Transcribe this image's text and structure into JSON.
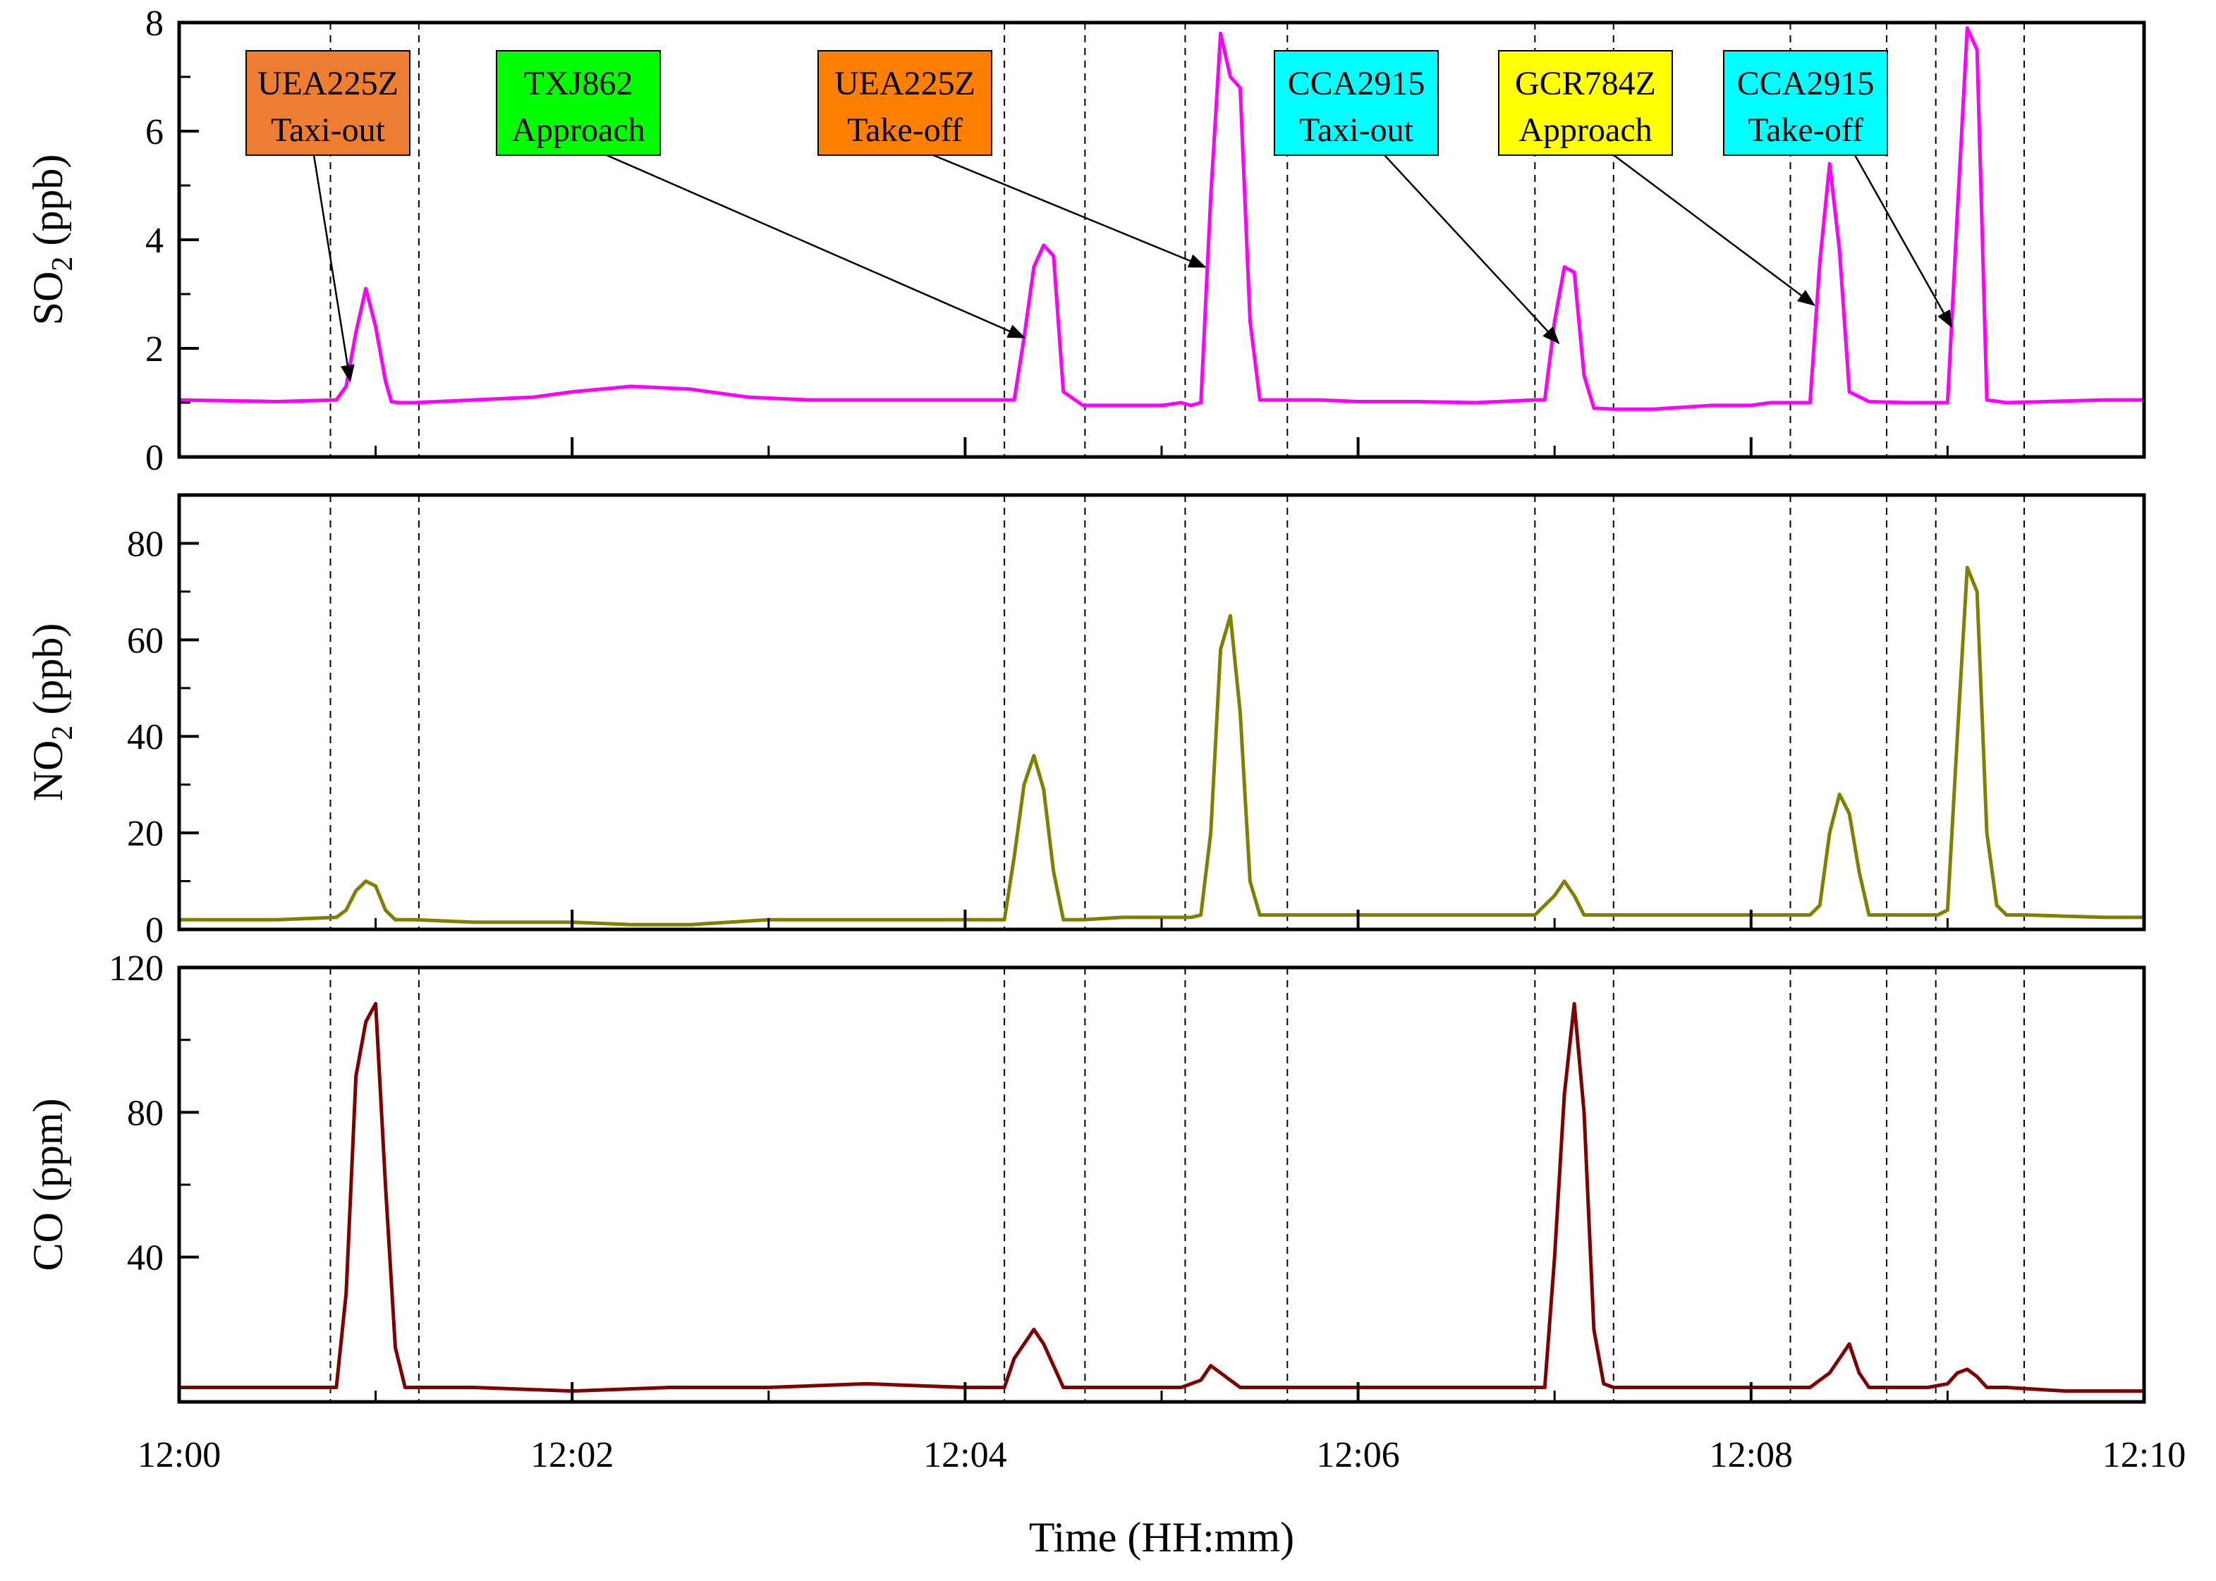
{
  "figure": {
    "xlabel": "Time (HH:mm)",
    "x_tick_labels": [
      "12:00",
      "12:02",
      "12:04",
      "12:06",
      "12:08",
      "12:10"
    ],
    "x_range_minutes": [
      0,
      10
    ]
  },
  "chart_data": [
    {
      "type": "line",
      "panel": "SO2",
      "ylabel_main": "SO",
      "ylabel_sub": "2",
      "ylabel_rest": " (ppb)",
      "color": "#ff00ff",
      "ylim": [
        0,
        8
      ],
      "yticks": [
        0,
        2,
        4,
        6,
        8
      ],
      "ytick_labels": [
        "0",
        "2",
        "4",
        "6",
        "8"
      ],
      "x": [
        0,
        0.5,
        0.8,
        0.85,
        0.9,
        0.95,
        1.0,
        1.05,
        1.08,
        1.12,
        1.2,
        1.5,
        1.8,
        2.0,
        2.3,
        2.6,
        2.9,
        3.2,
        3.5,
        3.8,
        4.0,
        4.15,
        4.25,
        4.3,
        4.35,
        4.4,
        4.45,
        4.5,
        4.6,
        4.8,
        5.0,
        5.1,
        5.15,
        5.2,
        5.25,
        5.3,
        5.35,
        5.4,
        5.45,
        5.5,
        5.55,
        5.8,
        6.0,
        6.3,
        6.6,
        6.9,
        6.95,
        7.0,
        7.05,
        7.1,
        7.15,
        7.2,
        7.3,
        7.5,
        7.8,
        8.0,
        8.1,
        8.2,
        8.3,
        8.35,
        8.4,
        8.45,
        8.5,
        8.6,
        8.8,
        8.9,
        8.95,
        9.0,
        9.05,
        9.1,
        9.15,
        9.2,
        9.3,
        9.5,
        9.8,
        10.0
      ],
      "values": [
        1.05,
        1.02,
        1.05,
        1.3,
        2.3,
        3.1,
        2.4,
        1.4,
        1.02,
        1.0,
        1.0,
        1.05,
        1.1,
        1.2,
        1.3,
        1.25,
        1.1,
        1.05,
        1.05,
        1.05,
        1.05,
        1.05,
        1.05,
        2.2,
        3.5,
        3.9,
        3.7,
        1.2,
        0.95,
        0.95,
        0.95,
        1.0,
        0.95,
        1.0,
        4.8,
        7.8,
        7.0,
        6.8,
        2.5,
        1.05,
        1.05,
        1.05,
        1.02,
        1.02,
        1.0,
        1.05,
        1.05,
        2.5,
        3.5,
        3.4,
        1.5,
        0.9,
        0.88,
        0.88,
        0.95,
        0.95,
        1.0,
        1.0,
        1.0,
        3.6,
        5.4,
        3.8,
        1.2,
        1.02,
        1.0,
        1.0,
        1.0,
        1.0,
        4.5,
        7.9,
        7.5,
        1.05,
        1.0,
        1.02,
        1.05,
        1.05
      ]
    },
    {
      "type": "line",
      "panel": "NO2",
      "ylabel_main": "NO",
      "ylabel_sub": "2",
      "ylabel_rest": " (ppb)",
      "color": "#808000",
      "ylim": [
        0,
        90
      ],
      "yticks": [
        0,
        20,
        40,
        60,
        80
      ],
      "ytick_labels": [
        "0",
        "20",
        "40",
        "60",
        "80"
      ],
      "x": [
        0,
        0.5,
        0.8,
        0.85,
        0.9,
        0.95,
        1.0,
        1.05,
        1.1,
        1.15,
        1.2,
        1.5,
        2.0,
        2.3,
        2.6,
        3.0,
        3.5,
        4.0,
        4.15,
        4.2,
        4.25,
        4.3,
        4.35,
        4.4,
        4.45,
        4.5,
        4.6,
        4.8,
        5.0,
        5.1,
        5.15,
        5.2,
        5.25,
        5.3,
        5.35,
        5.4,
        5.45,
        5.5,
        5.55,
        5.8,
        6.0,
        6.5,
        6.9,
        7.0,
        7.05,
        7.1,
        7.15,
        7.2,
        7.5,
        8.0,
        8.2,
        8.3,
        8.35,
        8.4,
        8.45,
        8.5,
        8.55,
        8.6,
        8.7,
        8.9,
        8.95,
        9.0,
        9.05,
        9.1,
        9.15,
        9.2,
        9.25,
        9.3,
        9.4,
        9.8,
        10.0
      ],
      "values": [
        2,
        2,
        2.5,
        4,
        8,
        10,
        9,
        4,
        2,
        2,
        2,
        1.5,
        1.5,
        1,
        1,
        2,
        2,
        2,
        2,
        2,
        15,
        30,
        36,
        29,
        12,
        2,
        2,
        2.5,
        2.5,
        2.5,
        2.5,
        3,
        20,
        58,
        65,
        45,
        10,
        3,
        3,
        3,
        3,
        3,
        3,
        7,
        10,
        7,
        3,
        3,
        3,
        3,
        3,
        3,
        5,
        20,
        28,
        24,
        12,
        3,
        3,
        3,
        3,
        4,
        40,
        75,
        70,
        20,
        5,
        3,
        3,
        2.5,
        2.5
      ]
    },
    {
      "type": "line",
      "panel": "CO",
      "ylabel_main": "CO",
      "ylabel_sub": "",
      "ylabel_rest": " (ppm)",
      "color": "#800000",
      "ylim": [
        0,
        120
      ],
      "yticks": [
        40,
        80,
        120
      ],
      "ytick_labels": [
        "40",
        "80",
        "120"
      ],
      "x": [
        0,
        0.5,
        0.8,
        0.85,
        0.9,
        0.95,
        1.0,
        1.05,
        1.1,
        1.15,
        1.2,
        1.5,
        2.0,
        2.5,
        3.0,
        3.5,
        4.0,
        4.15,
        4.2,
        4.25,
        4.3,
        4.35,
        4.4,
        4.45,
        4.5,
        4.6,
        4.8,
        5.0,
        5.1,
        5.2,
        5.25,
        5.3,
        5.35,
        5.4,
        5.5,
        6.0,
        6.5,
        6.9,
        6.95,
        7.0,
        7.05,
        7.1,
        7.15,
        7.2,
        7.25,
        7.3,
        7.5,
        8.0,
        8.2,
        8.3,
        8.4,
        8.45,
        8.5,
        8.55,
        8.6,
        8.8,
        8.9,
        9.0,
        9.05,
        9.1,
        9.15,
        9.2,
        9.3,
        9.6,
        10.0
      ],
      "values": [
        4,
        4,
        4,
        30,
        90,
        105,
        110,
        60,
        15,
        4,
        4,
        4,
        3,
        4,
        4,
        5,
        4,
        4,
        4,
        12,
        16,
        20,
        16,
        10,
        4,
        4,
        4,
        4,
        4,
        6,
        10,
        8,
        6,
        4,
        4,
        4,
        4,
        4,
        4,
        40,
        85,
        110,
        80,
        20,
        5,
        4,
        4,
        4,
        4,
        4,
        8,
        12,
        16,
        8,
        4,
        4,
        4,
        5,
        8,
        9,
        7,
        4,
        4,
        3,
        3
      ]
    }
  ],
  "event_lines": {
    "x_minutes": [
      0.77,
      1.22,
      4.2,
      4.61,
      5.12,
      5.64,
      6.9,
      7.3,
      8.2,
      8.69,
      8.94,
      9.39
    ]
  },
  "annotations": [
    {
      "line1": "UEA225Z",
      "line2": "Taxi-out",
      "color": "#ed7d31",
      "arrow_to_x": 0.87,
      "arrow_to_y": 1.4
    },
    {
      "line1": "TXJ862",
      "line2": "Approach",
      "color": "#00ff00",
      "arrow_to_x": 4.3,
      "arrow_to_y": 2.2
    },
    {
      "line1": "UEA225Z",
      "line2": "Take-off",
      "color": "#ff7f00",
      "arrow_to_x": 5.22,
      "arrow_to_y": 3.5
    },
    {
      "line1": "CCA2915",
      "line2": "Taxi-out",
      "color": "#00ffff",
      "arrow_to_x": 7.02,
      "arrow_to_y": 2.1
    },
    {
      "line1": "GCR784Z",
      "line2": "Approach",
      "color": "#ffff00",
      "arrow_to_x": 8.32,
      "arrow_to_y": 2.8
    },
    {
      "line1": "CCA2915",
      "line2": "Take-off",
      "color": "#00ffff",
      "arrow_to_x": 9.02,
      "arrow_to_y": 2.4
    }
  ]
}
